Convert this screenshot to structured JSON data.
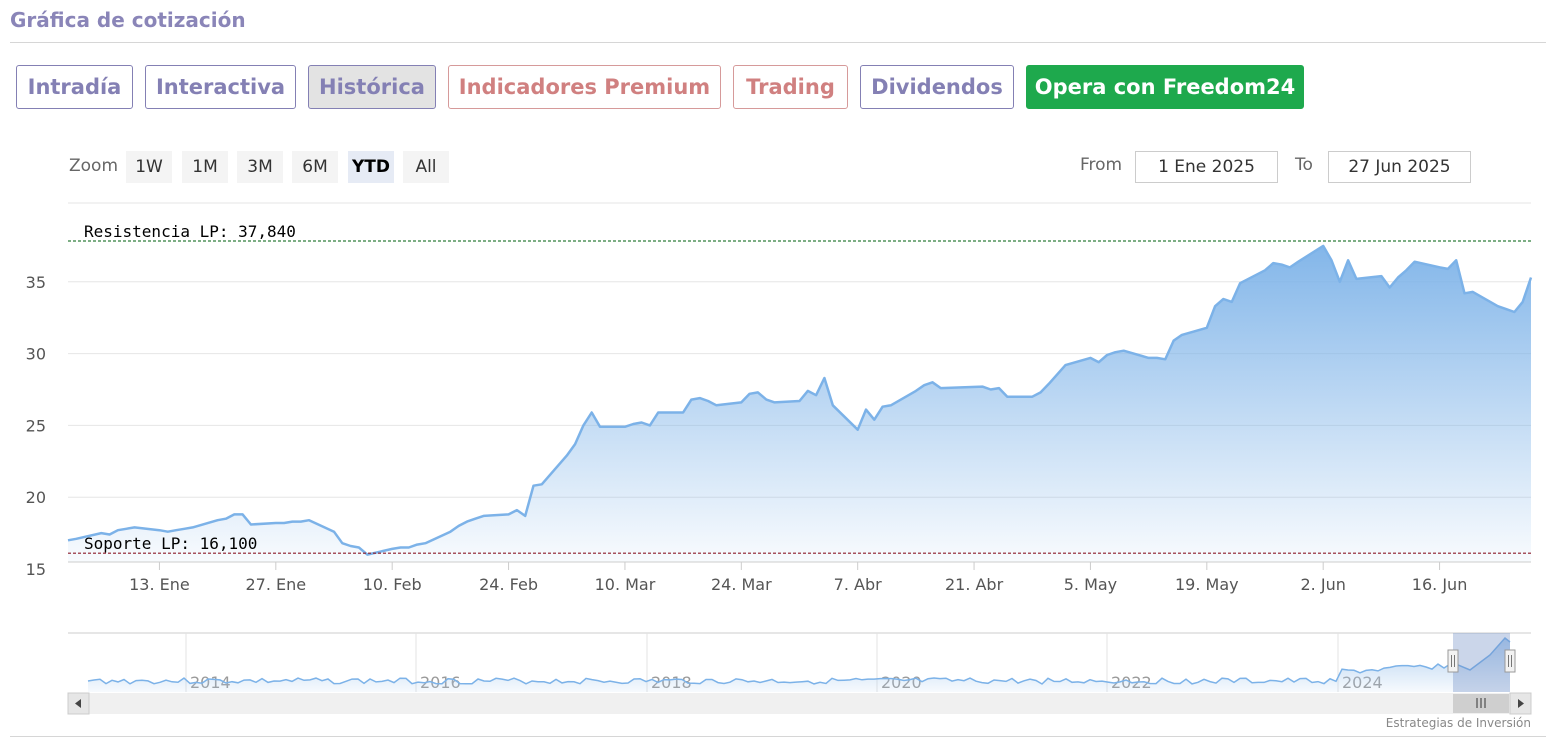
{
  "header": {
    "title": "Gráfica de cotización"
  },
  "tabs": [
    {
      "label": "Intradía"
    },
    {
      "label": "Interactiva"
    },
    {
      "label": "Histórica"
    },
    {
      "label": "Indicadores Premium"
    },
    {
      "label": "Trading"
    },
    {
      "label": "Dividendos"
    },
    {
      "label": "Opera con Freedom24"
    }
  ],
  "zoom": {
    "label": "Zoom",
    "buttons": [
      "1W",
      "1M",
      "3M",
      "6M",
      "YTD",
      "All"
    ],
    "selected": "YTD"
  },
  "range": {
    "from_label": "From",
    "from_value": "1 Ene 2025",
    "to_label": "To",
    "to_value": "27 Jun 2025"
  },
  "colors": {
    "line": "#7cb2e8",
    "area_top": "#7cb2e8",
    "resistance": "#2d7d3a",
    "support": "#8b1a2a",
    "cta": "#1ea94d",
    "tab_purple": "#8480b4",
    "tab_red": "#d08080"
  },
  "chart_data": {
    "type": "area",
    "ylim": [
      15,
      39
    ],
    "y_ticks": [
      "15",
      "20",
      "25",
      "30",
      "35"
    ],
    "x_ticks": [
      {
        "date": "2025-01-13",
        "label": "13. Ene"
      },
      {
        "date": "2025-01-27",
        "label": "27. Ene"
      },
      {
        "date": "2025-02-10",
        "label": "10. Feb"
      },
      {
        "date": "2025-02-24",
        "label": "24. Feb"
      },
      {
        "date": "2025-03-10",
        "label": "10. Mar"
      },
      {
        "date": "2025-03-24",
        "label": "24. Mar"
      },
      {
        "date": "2025-04-07",
        "label": "7. Abr"
      },
      {
        "date": "2025-04-21",
        "label": "21. Abr"
      },
      {
        "date": "2025-05-05",
        "label": "5. May"
      },
      {
        "date": "2025-05-19",
        "label": "19. May"
      },
      {
        "date": "2025-06-02",
        "label": "2. Jun"
      },
      {
        "date": "2025-06-16",
        "label": "16. Jun"
      }
    ],
    "x_range": [
      "2025-01-02",
      "2025-06-27"
    ],
    "series": [
      {
        "points": [
          [
            "2025-01-02",
            17.0
          ],
          [
            "2025-01-03",
            17.1
          ],
          [
            "2025-01-06",
            17.5
          ],
          [
            "2025-01-07",
            17.4
          ],
          [
            "2025-01-08",
            17.7
          ],
          [
            "2025-01-09",
            17.8
          ],
          [
            "2025-01-10",
            17.9
          ],
          [
            "2025-01-13",
            17.7
          ],
          [
            "2025-01-14",
            17.6
          ],
          [
            "2025-01-15",
            17.7
          ],
          [
            "2025-01-16",
            17.8
          ],
          [
            "2025-01-17",
            17.9
          ],
          [
            "2025-01-20",
            18.4
          ],
          [
            "2025-01-21",
            18.5
          ],
          [
            "2025-01-22",
            18.8
          ],
          [
            "2025-01-23",
            18.8
          ],
          [
            "2025-01-24",
            18.1
          ],
          [
            "2025-01-27",
            18.2
          ],
          [
            "2025-01-28",
            18.2
          ],
          [
            "2025-01-29",
            18.3
          ],
          [
            "2025-01-30",
            18.3
          ],
          [
            "2025-01-31",
            18.4
          ],
          [
            "2025-02-03",
            17.6
          ],
          [
            "2025-02-04",
            16.8
          ],
          [
            "2025-02-05",
            16.6
          ],
          [
            "2025-02-06",
            16.5
          ],
          [
            "2025-02-07",
            16.0
          ],
          [
            "2025-02-10",
            16.4
          ],
          [
            "2025-02-11",
            16.5
          ],
          [
            "2025-02-12",
            16.5
          ],
          [
            "2025-02-13",
            16.7
          ],
          [
            "2025-02-14",
            16.8
          ],
          [
            "2025-02-17",
            17.6
          ],
          [
            "2025-02-18",
            18.0
          ],
          [
            "2025-02-19",
            18.3
          ],
          [
            "2025-02-20",
            18.5
          ],
          [
            "2025-02-21",
            18.7
          ],
          [
            "2025-02-24",
            18.8
          ],
          [
            "2025-02-25",
            19.1
          ],
          [
            "2025-02-26",
            18.7
          ],
          [
            "2025-02-27",
            20.8
          ],
          [
            "2025-02-28",
            20.9
          ],
          [
            "2025-03-03",
            22.9
          ],
          [
            "2025-03-04",
            23.7
          ],
          [
            "2025-03-05",
            25.0
          ],
          [
            "2025-03-06",
            25.9
          ],
          [
            "2025-03-07",
            24.9
          ],
          [
            "2025-03-10",
            24.9
          ],
          [
            "2025-03-11",
            25.1
          ],
          [
            "2025-03-12",
            25.2
          ],
          [
            "2025-03-13",
            25.0
          ],
          [
            "2025-03-14",
            25.9
          ],
          [
            "2025-03-17",
            25.9
          ],
          [
            "2025-03-18",
            26.8
          ],
          [
            "2025-03-19",
            26.9
          ],
          [
            "2025-03-20",
            26.7
          ],
          [
            "2025-03-21",
            26.4
          ],
          [
            "2025-03-24",
            26.6
          ],
          [
            "2025-03-25",
            27.2
          ],
          [
            "2025-03-26",
            27.3
          ],
          [
            "2025-03-27",
            26.8
          ],
          [
            "2025-03-28",
            26.6
          ],
          [
            "2025-03-31",
            26.7
          ],
          [
            "2025-04-01",
            27.4
          ],
          [
            "2025-04-02",
            27.1
          ],
          [
            "2025-04-03",
            28.3
          ],
          [
            "2025-04-04",
            26.4
          ],
          [
            "2025-04-07",
            24.7
          ],
          [
            "2025-04-08",
            26.1
          ],
          [
            "2025-04-09",
            25.4
          ],
          [
            "2025-04-10",
            26.3
          ],
          [
            "2025-04-11",
            26.4
          ],
          [
            "2025-04-14",
            27.4
          ],
          [
            "2025-04-15",
            27.8
          ],
          [
            "2025-04-16",
            28.0
          ],
          [
            "2025-04-17",
            27.6
          ],
          [
            "2025-04-22",
            27.7
          ],
          [
            "2025-04-23",
            27.5
          ],
          [
            "2025-04-24",
            27.6
          ],
          [
            "2025-04-25",
            27.0
          ],
          [
            "2025-04-28",
            27.0
          ],
          [
            "2025-04-29",
            27.3
          ],
          [
            "2025-04-30",
            27.9
          ],
          [
            "2025-05-02",
            29.2
          ],
          [
            "2025-05-05",
            29.7
          ],
          [
            "2025-05-06",
            29.4
          ],
          [
            "2025-05-07",
            29.9
          ],
          [
            "2025-05-08",
            30.1
          ],
          [
            "2025-05-09",
            30.2
          ],
          [
            "2025-05-12",
            29.7
          ],
          [
            "2025-05-13",
            29.7
          ],
          [
            "2025-05-14",
            29.6
          ],
          [
            "2025-05-15",
            30.9
          ],
          [
            "2025-05-16",
            31.3
          ],
          [
            "2025-05-19",
            31.8
          ],
          [
            "2025-05-20",
            33.3
          ],
          [
            "2025-05-21",
            33.8
          ],
          [
            "2025-05-22",
            33.6
          ],
          [
            "2025-05-23",
            34.9
          ],
          [
            "2025-05-26",
            35.8
          ],
          [
            "2025-05-27",
            36.3
          ],
          [
            "2025-05-28",
            36.2
          ],
          [
            "2025-05-29",
            36.0
          ],
          [
            "2025-05-30",
            36.4
          ],
          [
            "2025-06-02",
            37.5
          ],
          [
            "2025-06-03",
            36.5
          ],
          [
            "2025-06-04",
            35.0
          ],
          [
            "2025-06-05",
            36.5
          ],
          [
            "2025-06-06",
            35.2
          ],
          [
            "2025-06-09",
            35.4
          ],
          [
            "2025-06-10",
            34.6
          ],
          [
            "2025-06-11",
            35.3
          ],
          [
            "2025-06-12",
            35.8
          ],
          [
            "2025-06-13",
            36.4
          ],
          [
            "2025-06-16",
            36.0
          ],
          [
            "2025-06-17",
            35.9
          ],
          [
            "2025-06-18",
            36.5
          ],
          [
            "2025-06-19",
            34.2
          ],
          [
            "2025-06-20",
            34.3
          ],
          [
            "2025-06-23",
            33.3
          ],
          [
            "2025-06-24",
            33.1
          ],
          [
            "2025-06-25",
            32.9
          ],
          [
            "2025-06-26",
            33.6
          ],
          [
            "2025-06-27",
            35.3
          ]
        ]
      }
    ],
    "annotations": [
      {
        "label": "Resistencia LP: 37,840",
        "value": 37.84
      },
      {
        "label": "Soporte LP: 16,100",
        "value": 16.1
      }
    ],
    "navigator": {
      "year_labels": [
        "2014",
        "2016",
        "2018",
        "2020",
        "2022",
        "2024"
      ]
    }
  },
  "footer": {
    "credit": "Estrategias de Inversión"
  }
}
